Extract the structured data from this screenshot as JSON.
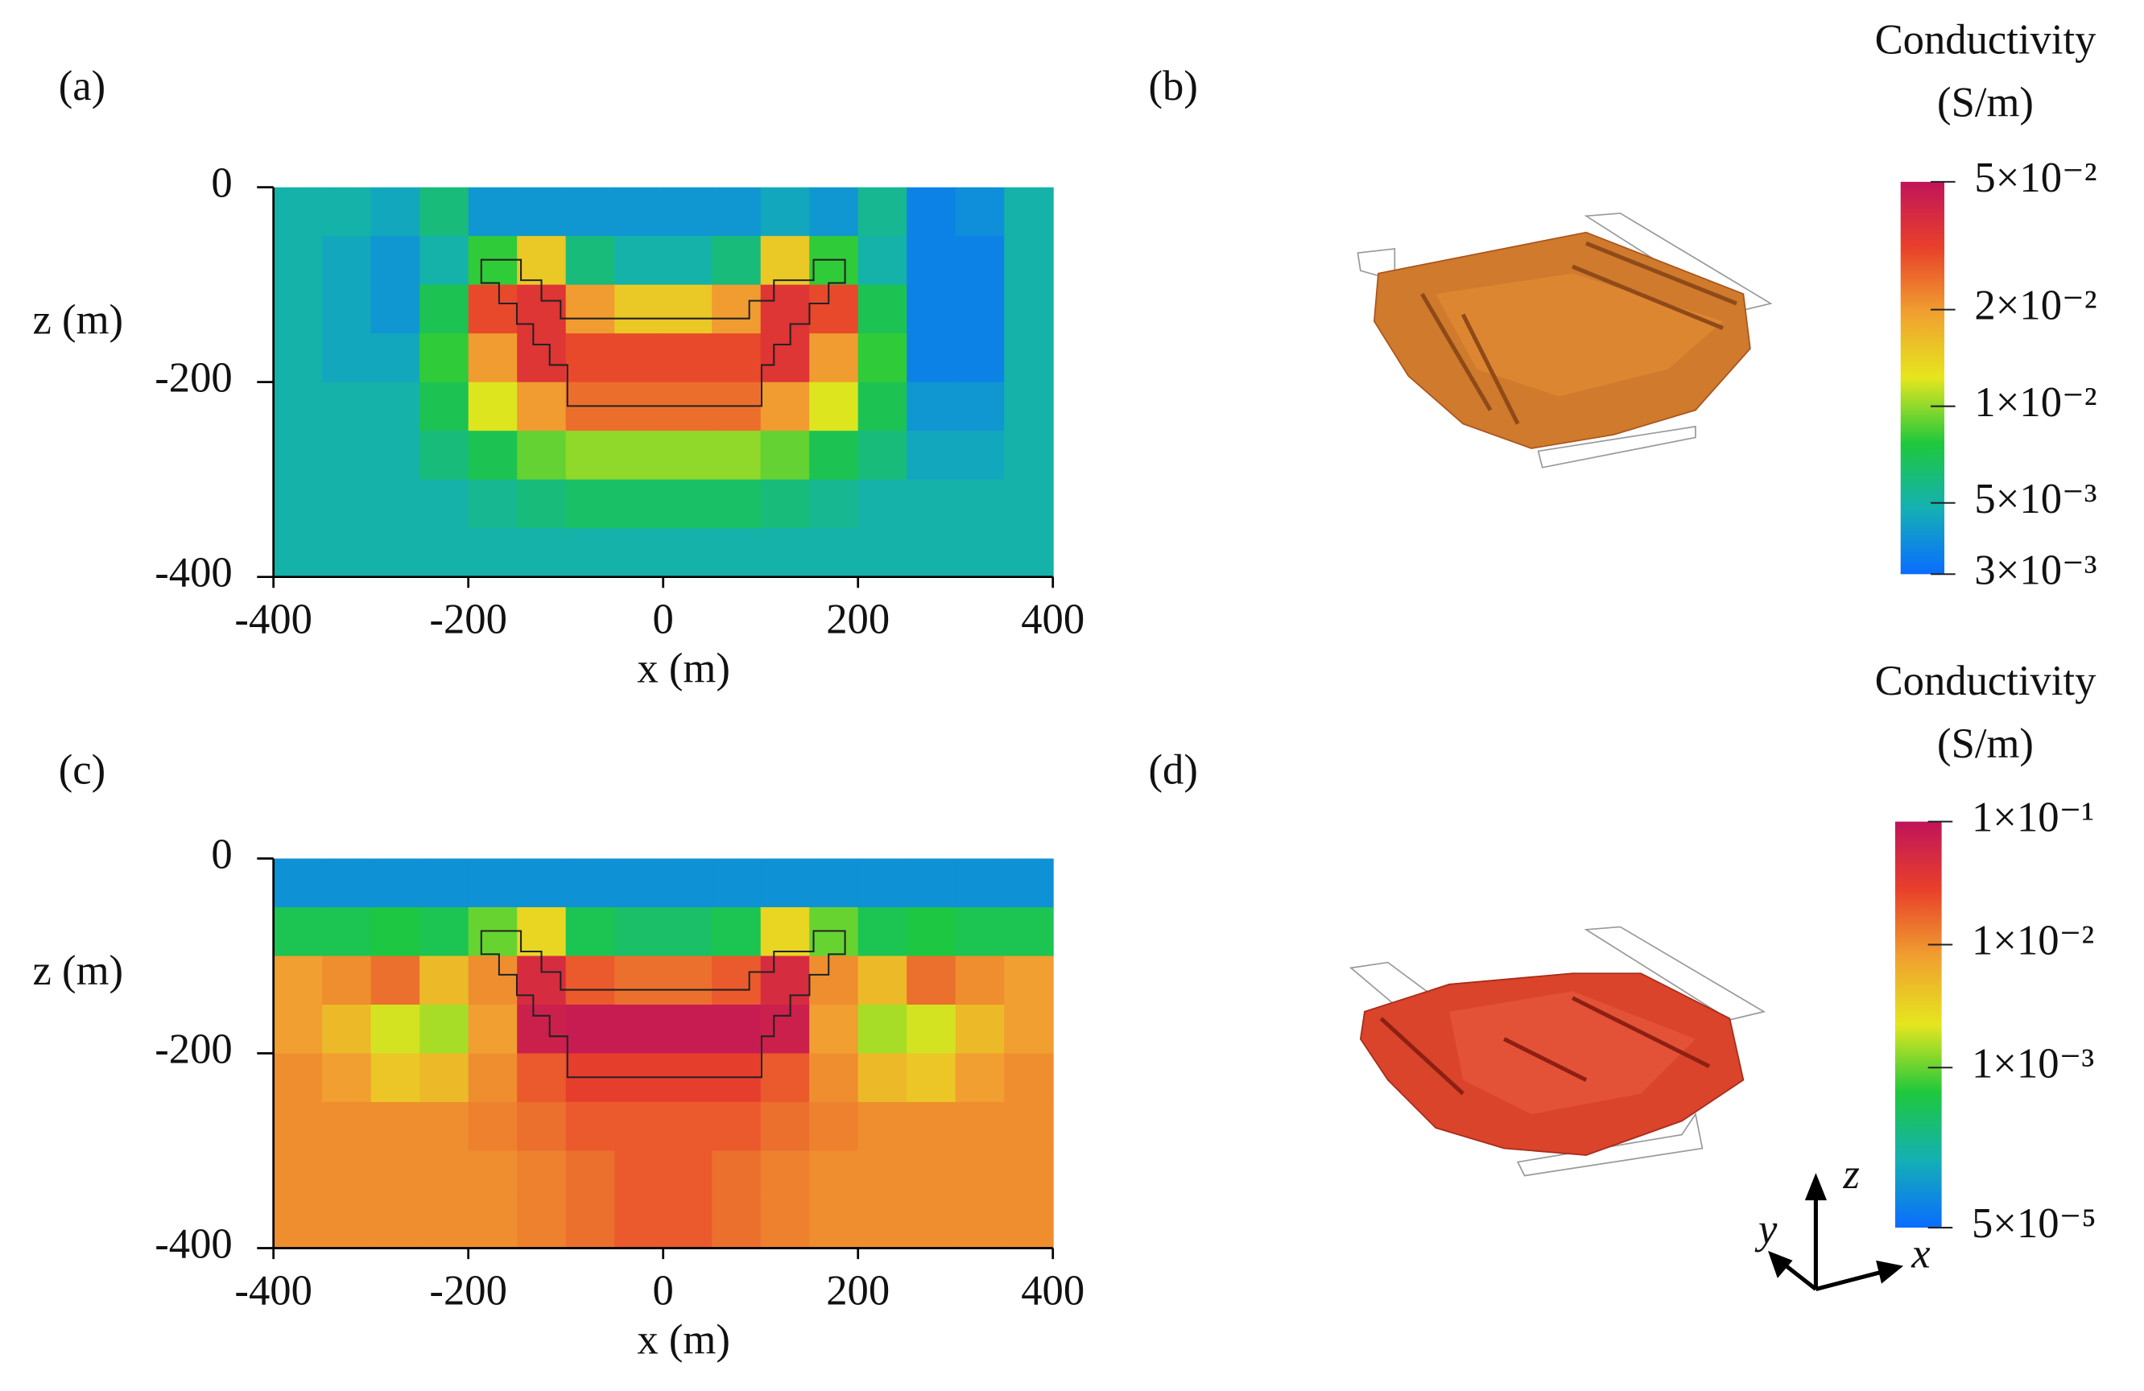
{
  "chart_data": [
    {
      "type": "heatmap",
      "panel_label": "(a)",
      "render_panel_label": "(b)",
      "x_label": "x (m)",
      "y_label": "z (m)",
      "xlim": [
        -400,
        400
      ],
      "ylim": [
        -400,
        0
      ],
      "xticks": [
        -400,
        -200,
        0,
        200,
        400
      ],
      "yticks": [
        0,
        -200,
        -400
      ],
      "x": [
        -375,
        -325,
        -275,
        -225,
        -175,
        -125,
        -75,
        -25,
        25,
        75,
        125,
        175,
        225,
        275,
        325,
        375
      ],
      "y": [
        -25,
        -75,
        -125,
        -175,
        -225,
        -275,
        -325,
        -375
      ],
      "values": [
        [
          0.005,
          0.005,
          0.0045,
          0.006,
          0.004,
          0.004,
          0.004,
          0.004,
          0.004,
          0.004,
          0.0045,
          0.004,
          0.0055,
          0.0035,
          0.0038,
          0.005
        ],
        [
          0.005,
          0.0045,
          0.004,
          0.005,
          0.008,
          0.015,
          0.006,
          0.005,
          0.005,
          0.006,
          0.015,
          0.008,
          0.005,
          0.0035,
          0.0035,
          0.005
        ],
        [
          0.005,
          0.0045,
          0.004,
          0.007,
          0.03,
          0.035,
          0.02,
          0.015,
          0.015,
          0.02,
          0.035,
          0.03,
          0.007,
          0.0035,
          0.0035,
          0.005
        ],
        [
          0.005,
          0.0045,
          0.0045,
          0.008,
          0.02,
          0.035,
          0.03,
          0.03,
          0.03,
          0.03,
          0.035,
          0.02,
          0.008,
          0.0035,
          0.0035,
          0.005
        ],
        [
          0.005,
          0.005,
          0.005,
          0.007,
          0.012,
          0.02,
          0.025,
          0.025,
          0.025,
          0.025,
          0.02,
          0.012,
          0.007,
          0.004,
          0.004,
          0.005
        ],
        [
          0.005,
          0.005,
          0.005,
          0.006,
          0.007,
          0.009,
          0.01,
          0.01,
          0.01,
          0.01,
          0.009,
          0.007,
          0.006,
          0.0045,
          0.0045,
          0.005
        ],
        [
          0.005,
          0.005,
          0.005,
          0.005,
          0.0055,
          0.006,
          0.0065,
          0.0065,
          0.0065,
          0.0065,
          0.006,
          0.0055,
          0.005,
          0.005,
          0.005,
          0.005
        ],
        [
          0.005,
          0.005,
          0.005,
          0.005,
          0.005,
          0.005,
          0.005,
          0.005,
          0.005,
          0.005,
          0.005,
          0.005,
          0.005,
          0.005,
          0.005,
          0.005
        ]
      ],
      "colormap": [
        "#0a6cff",
        "#14b0b4",
        "#1ec83c",
        "#e6e61e",
        "#f0a030",
        "#e8402a",
        "#c0145a"
      ],
      "colorbar": {
        "title": "Conductivity",
        "unit": "(S/m)",
        "log": true,
        "lim": [
          0.003,
          0.05
        ],
        "ticks": [
          {
            "value": 0.05,
            "label": "5×10⁻²"
          },
          {
            "value": 0.02,
            "label": "2×10⁻²"
          },
          {
            "value": 0.01,
            "label": "1×10⁻²"
          },
          {
            "value": 0.005,
            "label": "5×10⁻³"
          },
          {
            "value": 0.003,
            "label": "3×10⁻³"
          }
        ]
      }
    },
    {
      "type": "heatmap",
      "panel_label": "(c)",
      "render_panel_label": "(d)",
      "x_label": "x (m)",
      "y_label": "z (m)",
      "xlim": [
        -400,
        400
      ],
      "ylim": [
        -400,
        0
      ],
      "xticks": [
        -400,
        -200,
        0,
        200,
        400
      ],
      "yticks": [
        0,
        -200,
        -400
      ],
      "x": [
        -375,
        -325,
        -275,
        -225,
        -175,
        -125,
        -75,
        -25,
        25,
        75,
        125,
        175,
        225,
        275,
        325,
        375
      ],
      "y": [
        -25,
        -75,
        -125,
        -175,
        -225,
        -275,
        -325,
        -375
      ],
      "values": [
        [
          0.0001,
          0.0001,
          0.0001,
          0.0001,
          0.0001,
          0.0001,
          0.0001,
          0.0001,
          0.0001,
          0.0001,
          0.0001,
          0.0001,
          0.0001,
          0.0001,
          0.0001,
          0.0001
        ],
        [
          0.0005,
          0.0005,
          0.0006,
          0.0005,
          0.001,
          0.003,
          0.0005,
          0.0004,
          0.0004,
          0.0005,
          0.003,
          0.001,
          0.0005,
          0.0006,
          0.0005,
          0.0005
        ],
        [
          0.008,
          0.01,
          0.015,
          0.005,
          0.01,
          0.05,
          0.02,
          0.015,
          0.015,
          0.02,
          0.05,
          0.01,
          0.005,
          0.015,
          0.01,
          0.008
        ],
        [
          0.008,
          0.005,
          0.002,
          0.0015,
          0.008,
          0.07,
          0.08,
          0.08,
          0.08,
          0.08,
          0.07,
          0.008,
          0.0015,
          0.002,
          0.005,
          0.008
        ],
        [
          0.01,
          0.008,
          0.004,
          0.005,
          0.01,
          0.02,
          0.03,
          0.03,
          0.03,
          0.03,
          0.02,
          0.01,
          0.005,
          0.004,
          0.008,
          0.01
        ],
        [
          0.01,
          0.01,
          0.01,
          0.01,
          0.012,
          0.015,
          0.02,
          0.02,
          0.02,
          0.02,
          0.015,
          0.012,
          0.01,
          0.01,
          0.01,
          0.01
        ],
        [
          0.01,
          0.01,
          0.01,
          0.01,
          0.01,
          0.012,
          0.015,
          0.02,
          0.02,
          0.015,
          0.012,
          0.01,
          0.01,
          0.01,
          0.01,
          0.01
        ],
        [
          0.01,
          0.01,
          0.01,
          0.01,
          0.01,
          0.012,
          0.015,
          0.02,
          0.02,
          0.015,
          0.012,
          0.01,
          0.01,
          0.01,
          0.01,
          0.01
        ]
      ],
      "colormap": [
        "#0a6cff",
        "#14b0b4",
        "#1ec83c",
        "#e6e61e",
        "#f0a030",
        "#e8402a",
        "#c0145a"
      ],
      "colorbar": {
        "title": "Conductivity",
        "unit": "(S/m)",
        "log": true,
        "lim": [
          5e-05,
          0.1
        ],
        "ticks": [
          {
            "value": 0.1,
            "label": "1×10⁻¹"
          },
          {
            "value": 0.01,
            "label": "1×10⁻²"
          },
          {
            "value": 0.001,
            "label": "1×10⁻³"
          },
          {
            "value": 5e-05,
            "label": "5×10⁻⁵"
          }
        ]
      }
    }
  ],
  "axes_triad": [
    "x",
    "y",
    "z"
  ]
}
